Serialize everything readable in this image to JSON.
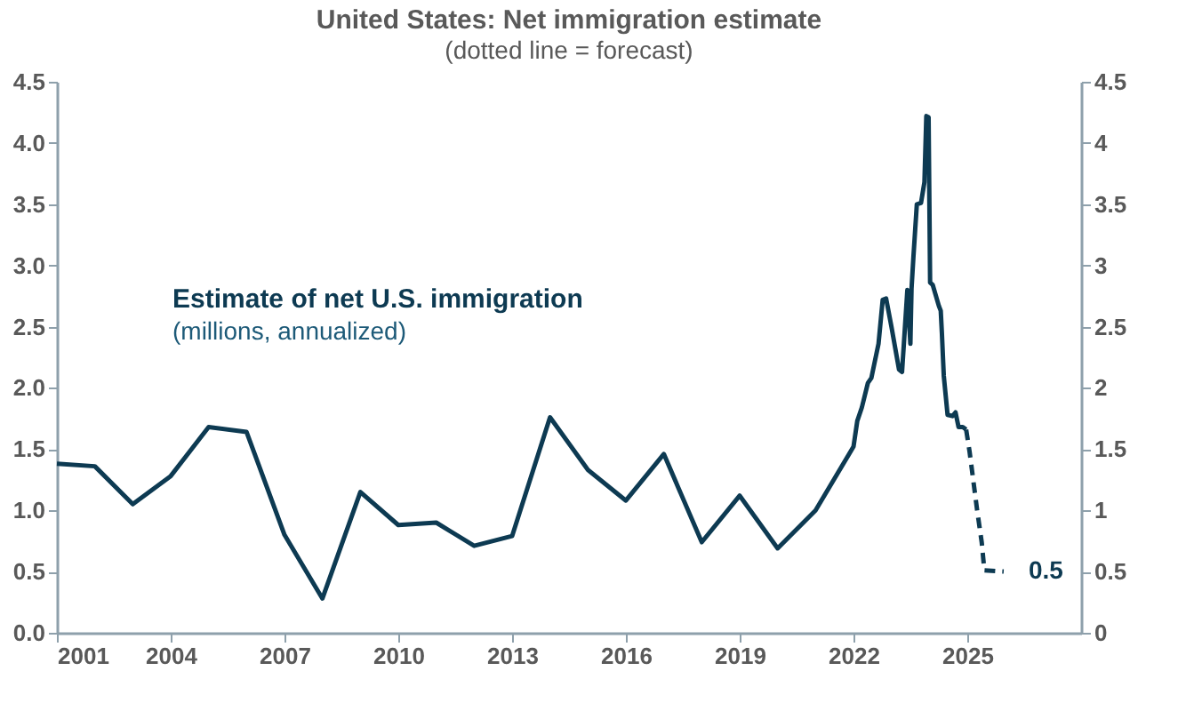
{
  "chart_data": {
    "type": "line",
    "title": "United States: Net immigration estimate",
    "subtitle": "(dotted line = forecast)",
    "annotations": [
      "Estimate of net U.S. immigration",
      "(millions, annualized)",
      {
        "text": "0.5",
        "x": 2025.96,
        "y": 0.5
      }
    ],
    "xlim": [
      2001,
      2028
    ],
    "xticks": [
      2001,
      2004,
      2007,
      2010,
      2013,
      2016,
      2019,
      2022,
      2025
    ],
    "ylim": [
      0,
      4.5
    ],
    "yticks": [
      {
        "value": 0,
        "label": "0.0"
      },
      {
        "value": 0.5,
        "label": "0.5"
      },
      {
        "value": 1,
        "label": "1.0"
      },
      {
        "value": 1.5,
        "label": "1.5"
      },
      {
        "value": 2,
        "label": "2.0"
      },
      {
        "value": 2.5,
        "label": "2.5"
      },
      {
        "value": 3,
        "label": "3.0"
      },
      {
        "value": 3.5,
        "label": "3.5"
      },
      {
        "value": 4,
        "label": "4.0"
      },
      {
        "value": 4.5,
        "label": "4.5"
      }
    ],
    "y2lim": [
      0,
      4.5
    ],
    "y2ticks": [
      0,
      0.5,
      1,
      1.5,
      2,
      2.5,
      3,
      3.5,
      4,
      4.5
    ],
    "grid": false,
    "marker": "none",
    "series": [
      {
        "color": "#0d3a52",
        "line_style": "solid",
        "x": [
          2001,
          2002,
          2003,
          2004,
          2005,
          2006,
          2007,
          2008,
          2009,
          2010,
          2011,
          2012,
          2013,
          2014,
          2015,
          2016,
          2017,
          2018,
          2019,
          2020,
          2021,
          2022,
          2022.1,
          2022.22,
          2022.38,
          2022.47,
          2022.66,
          2022.77,
          2022.86,
          2023.0,
          2023.2,
          2023.28,
          2023.42,
          2023.5,
          2023.53,
          2023.58,
          2023.67,
          2023.78,
          2023.87,
          2023.92,
          2023.98,
          2024.02,
          2024.09,
          2024.25,
          2024.3,
          2024.33,
          2024.38,
          2024.48,
          2024.61,
          2024.69,
          2024.77,
          2024.88,
          2024.97
        ],
        "values": [
          1.38,
          1.36,
          1.05,
          1.28,
          1.68,
          1.64,
          0.8,
          0.28,
          1.15,
          0.88,
          0.9,
          0.71,
          0.79,
          1.76,
          1.33,
          1.08,
          1.46,
          0.74,
          1.12,
          0.69,
          1.0,
          1.52,
          1.73,
          1.84,
          2.04,
          2.08,
          2.36,
          2.72,
          2.73,
          2.5,
          2.15,
          2.13,
          2.8,
          2.36,
          2.81,
          3.07,
          3.5,
          3.51,
          3.68,
          4.22,
          4.21,
          2.86,
          2.84,
          2.67,
          2.63,
          2.45,
          2.1,
          1.78,
          1.77,
          1.8,
          1.68,
          1.68,
          1.66
        ]
      },
      {
        "color": "#0d3a52",
        "line_style": "dashed",
        "x": [
          2024.97,
          2025.06,
          2025.26,
          2025.38,
          2025.45,
          2025.96
        ],
        "values": [
          1.66,
          1.48,
          1.0,
          0.74,
          0.51,
          0.5
        ]
      }
    ]
  }
}
